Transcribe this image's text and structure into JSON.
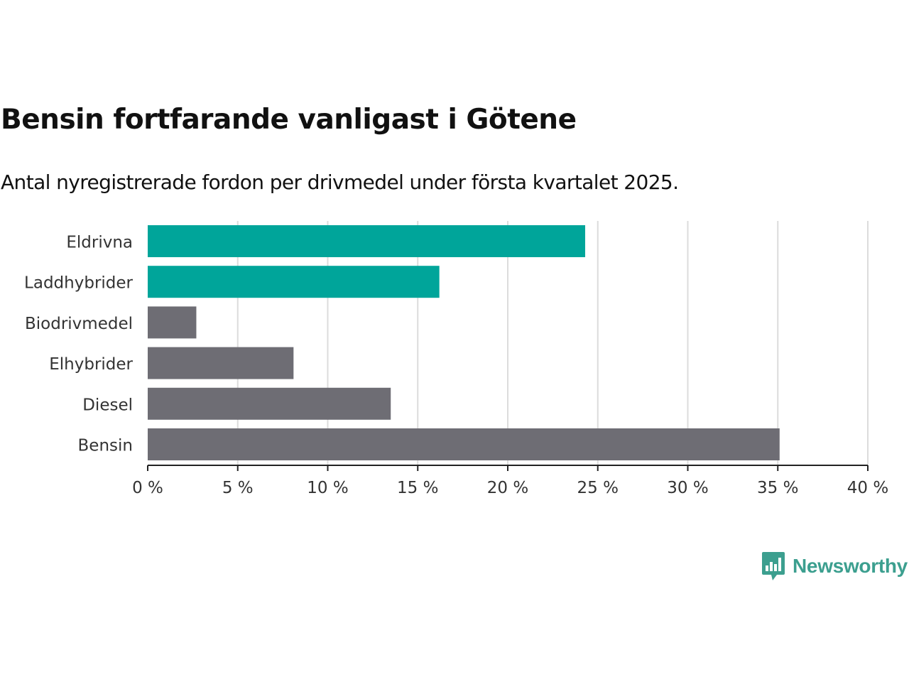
{
  "title": "Bensin fortfarande vanligast i Götene",
  "subtitle": "Antal nyregistrerade fordon per drivmedel under första kvartalet 2025.",
  "brand": {
    "name": "Newsworthy",
    "color": "#3c9f8f",
    "icon": "bar-chart-speech-bubble-icon"
  },
  "colors": {
    "highlight": "#00a59a",
    "default": "#6e6d74",
    "grid": "#dcdcdc",
    "axis": "#222222"
  },
  "chart_data": {
    "type": "bar",
    "orientation": "horizontal",
    "categories": [
      "Eldrivna",
      "Laddhybrider",
      "Biodrivmedel",
      "Elhybrider",
      "Diesel",
      "Bensin"
    ],
    "values": [
      24.3,
      16.2,
      2.7,
      8.1,
      13.5,
      35.1
    ],
    "highlighted": [
      true,
      true,
      false,
      false,
      false,
      false
    ],
    "xlim": [
      0,
      40
    ],
    "xticks": [
      0,
      5,
      10,
      15,
      20,
      25,
      30,
      35,
      40
    ],
    "xtick_labels": [
      "0 %",
      "5 %",
      "10 %",
      "15 %",
      "20 %",
      "25 %",
      "30 %",
      "35 %",
      "40 %"
    ],
    "xlabel": "",
    "ylabel": "",
    "grid": "vertical",
    "legend": "none"
  }
}
